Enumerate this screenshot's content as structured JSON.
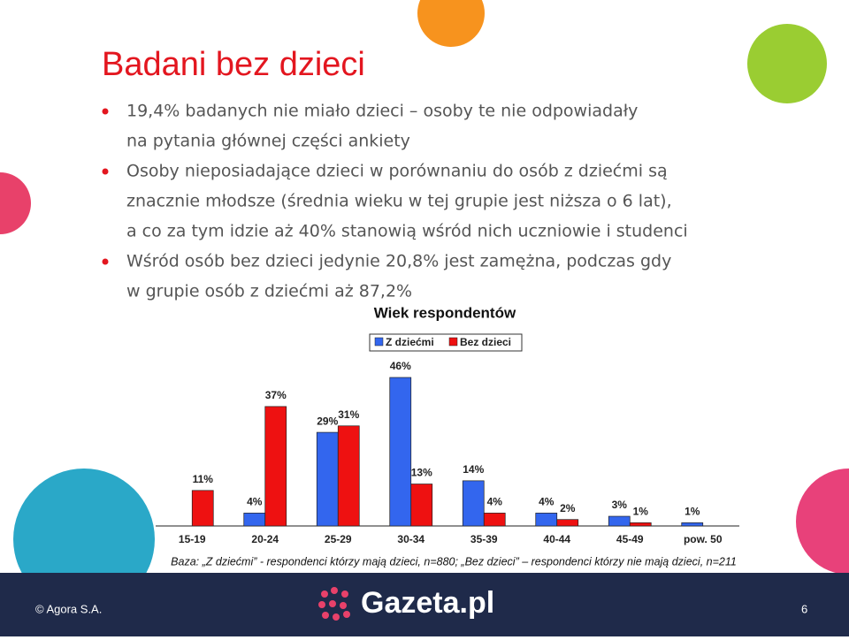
{
  "title": "Badani bez dzieci",
  "bullets": [
    [
      "19,4% badanych nie miało dzieci – osoby te nie odpowiadały",
      "na pytania głównej części ankiety"
    ],
    [
      "Osoby nieposiadające dzieci w porównaniu do osób z dziećmi są",
      "znacznie młodsze (średnia wieku w tej grupie jest niższa o 6 lat),",
      "a co za tym idzie aż 40% stanowią wśród nich uczniowie i studenci"
    ],
    [
      "Wśród osób bez dzieci jedynie 20,8% jest zamężna, podczas gdy",
      "w grupie osób z dziećmi aż 87,2%"
    ]
  ],
  "chart_data": {
    "type": "bar",
    "title": "Wiek respondentów",
    "categories": [
      "15-19",
      "20-24",
      "25-29",
      "30-34",
      "35-39",
      "40-44",
      "45-49",
      "pow. 50"
    ],
    "series": [
      {
        "name": "Z dziećmi",
        "color": "#3366ee",
        "values": [
          null,
          4,
          29,
          46,
          14,
          4,
          3,
          1
        ],
        "value_labels": [
          null,
          "4%",
          "29%",
          "46%",
          "14%",
          "4%",
          "3%",
          "1%"
        ]
      },
      {
        "name": "Bez dzieci",
        "color": "#ee1111",
        "values": [
          11,
          37,
          31,
          13,
          4,
          2,
          1,
          null
        ],
        "value_labels": [
          "11%",
          "37%",
          "31%",
          "13%",
          "4%",
          "2%",
          "1%",
          null
        ]
      }
    ],
    "note": "Baza: „Z dziećmi” - respondenci którzy mają dzieci, n=880; „Bez dzieci” – respondenci którzy nie mają dzieci, n=211"
  },
  "footer": {
    "copyright": "© Agora S.A.",
    "logo": "Gazeta.pl",
    "page": "6"
  }
}
